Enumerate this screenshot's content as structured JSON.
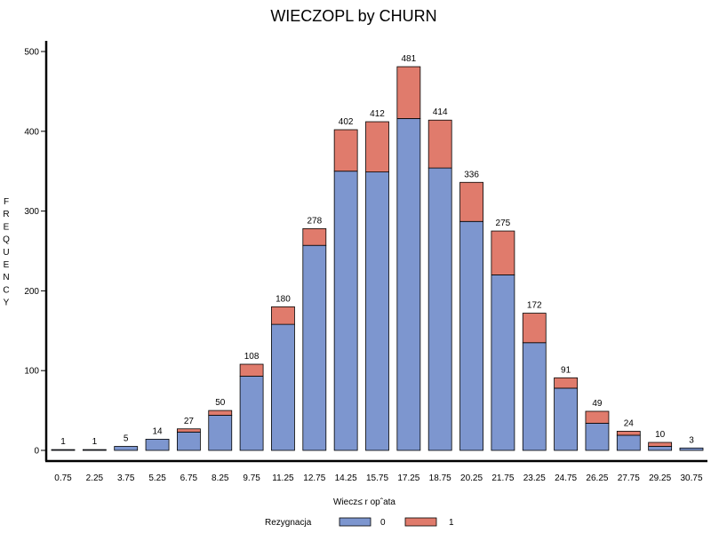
{
  "chart_data": {
    "type": "bar",
    "stacked": true,
    "title": "WIECZOPL by CHURN",
    "xlabel": "Wiecz≤ r opˆata",
    "ylabel": "FREQUENCY",
    "ylim": [
      0,
      500
    ],
    "yticks": [
      0,
      100,
      200,
      300,
      400,
      500
    ],
    "grid": false,
    "legend_position": "bottom",
    "legend_title": "Rezygnacja",
    "categories": [
      "0.75",
      "2.25",
      "3.75",
      "5.25",
      "6.75",
      "8.25",
      "9.75",
      "11.25",
      "12.75",
      "14.25",
      "15.75",
      "17.25",
      "18.75",
      "20.25",
      "21.75",
      "23.25",
      "24.75",
      "26.25",
      "27.75",
      "29.25",
      "30.75"
    ],
    "totals": [
      1,
      1,
      5,
      14,
      27,
      50,
      108,
      180,
      278,
      402,
      412,
      481,
      414,
      336,
      275,
      172,
      91,
      49,
      24,
      10,
      3
    ],
    "series": [
      {
        "name": "0",
        "color": "#7d96cf",
        "values": [
          1,
          1,
          5,
          14,
          23,
          44,
          93,
          158,
          257,
          350,
          349,
          416,
          354,
          287,
          220,
          135,
          78,
          34,
          19,
          5,
          3
        ]
      },
      {
        "name": "1",
        "color": "#e07b6c",
        "values": [
          0,
          0,
          0,
          0,
          4,
          6,
          15,
          22,
          21,
          52,
          63,
          65,
          60,
          49,
          55,
          37,
          13,
          15,
          5,
          5,
          0
        ]
      }
    ]
  }
}
